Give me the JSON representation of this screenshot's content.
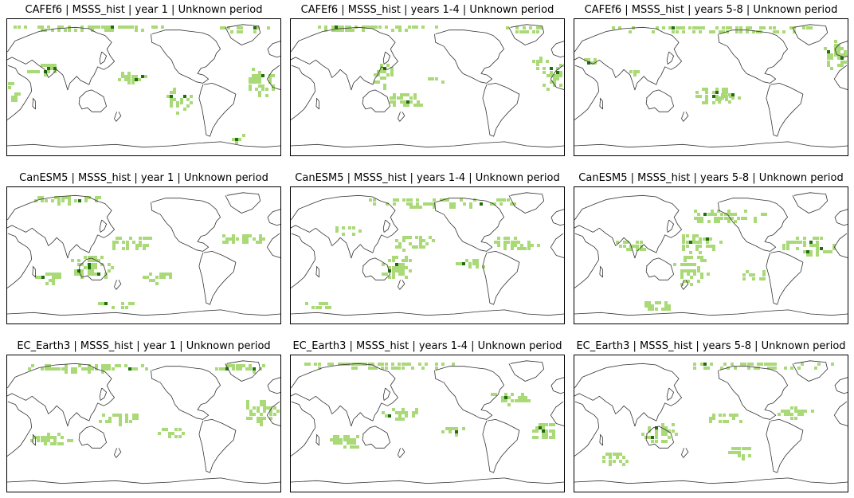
{
  "figure": {
    "colors": {
      "moderate_skill": "#aad977",
      "high_skill": "#1f6e0f",
      "coastline": "#333333",
      "frame": "#000000"
    },
    "legend": "none",
    "map_projection": "global equirectangular, Pacific-centred"
  },
  "panels": [
    {
      "id": "cafef6-y1",
      "model": "CAFEf6",
      "lead": "year 1",
      "title": "CAFEf6 | MSSS_hist | year 1 | Unknown period"
    },
    {
      "id": "cafef6-y14",
      "model": "CAFEf6",
      "lead": "years 1-4",
      "title": "CAFEf6 | MSSS_hist | years 1-4 | Unknown period"
    },
    {
      "id": "cafef6-y58",
      "model": "CAFEf6",
      "lead": "years 5-8",
      "title": "CAFEf6 | MSSS_hist | years 5-8 | Unknown period"
    },
    {
      "id": "canesm5-y1",
      "model": "CanESM5",
      "lead": "year 1",
      "title": "CanESM5 | MSSS_hist | year 1 | Unknown period"
    },
    {
      "id": "canesm5-y14",
      "model": "CanESM5",
      "lead": "years 1-4",
      "title": "CanESM5 | MSSS_hist | years 1-4 | Unknown period"
    },
    {
      "id": "canesm5-y58",
      "model": "CanESM5",
      "lead": "years 5-8",
      "title": "CanESM5 | MSSS_hist | years 5-8 | Unknown period"
    },
    {
      "id": "ecearth3-y1",
      "model": "EC_Earth3",
      "lead": "year 1",
      "title": "EC_Earth3 | MSSS_hist | year 1 | Unknown period"
    },
    {
      "id": "ecearth3-y14",
      "model": "EC_Earth3",
      "lead": "years 1-4",
      "title": "EC_Earth3 | MSSS_hist | years 1-4 | Unknown period"
    },
    {
      "id": "ecearth3-y58",
      "model": "EC_Earth3",
      "lead": "years 5-8",
      "title": "EC_Earth3 | MSSS_hist | years 5-8 | Unknown period"
    }
  ]
}
